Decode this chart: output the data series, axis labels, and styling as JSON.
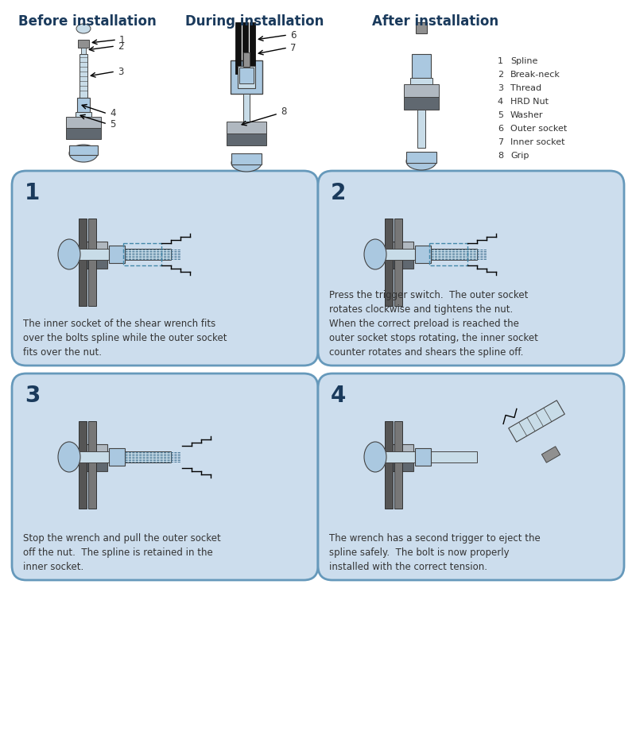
{
  "title_before": "Before installation",
  "title_during": "During installation",
  "title_after": "After installation",
  "legend_items": [
    [
      "1",
      "Spline"
    ],
    [
      "2",
      "Break-neck"
    ],
    [
      "3",
      "Thread"
    ],
    [
      "4",
      "HRD Nut"
    ],
    [
      "5",
      "Washer"
    ],
    [
      "6",
      "Outer socket"
    ],
    [
      "7",
      "Inner socket"
    ],
    [
      "8",
      "Grip"
    ]
  ],
  "panel_numbers": [
    "1",
    "2",
    "3",
    "4"
  ],
  "panel_texts": [
    "The inner socket of the shear wrench fits\nover the bolts spline while the outer socket\nfits over the nut.",
    "Press the trigger switch.  The outer socket\nrotates clockwise and tightens the nut.\nWhen the correct preload is reached the\nouter socket stops rotating, the inner socket\ncounter rotates and shears the spline off.",
    "Stop the wrench and pull the outer socket\noff the nut.  The spline is retained in the\ninner socket.",
    "The wrench has a second trigger to eject the\nspline safely.  The bolt is now properly\ninstalled with the correct tension."
  ],
  "bg_color": "#ffffff",
  "panel_bg": "#ccdded",
  "panel_border": "#6699bb",
  "title_color": "#1a3a5c",
  "text_color": "#333333",
  "bolt_blue": "#aac8e0",
  "bolt_light": "#c8dce8",
  "metal_gray": "#909090",
  "dark_gray": "#444444",
  "plate_light": "#b0b8c0",
  "plate_dark": "#606870",
  "figure_width": 8.0,
  "figure_height": 9.35
}
